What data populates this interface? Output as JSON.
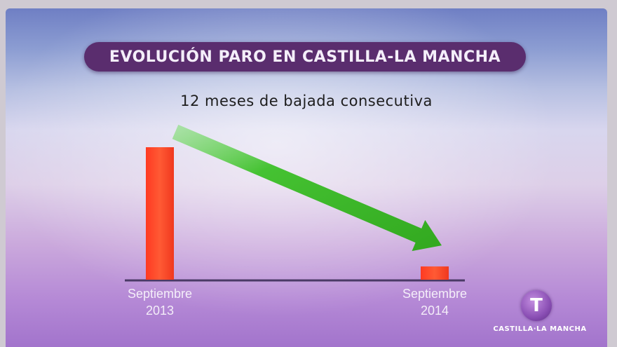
{
  "title": "EVOLUCIÓN PARO EN CASTILLA-LA MANCHA",
  "subtitle": "12 meses de bajada consecutiva",
  "chart_data": {
    "type": "bar",
    "categories": [
      [
        "Septiembre",
        "2013"
      ],
      [
        "Septiembre",
        "2014"
      ]
    ],
    "values": [
      100,
      10
    ],
    "ylim": [
      0,
      100
    ],
    "grid": false,
    "bar_colors": [
      "#ff4a2e",
      "#ff4a2e"
    ],
    "arrow_color": "#38b82c",
    "trend": "down"
  },
  "logo": {
    "icon": "T",
    "text": "CASTILLA·LA MANCHA"
  }
}
